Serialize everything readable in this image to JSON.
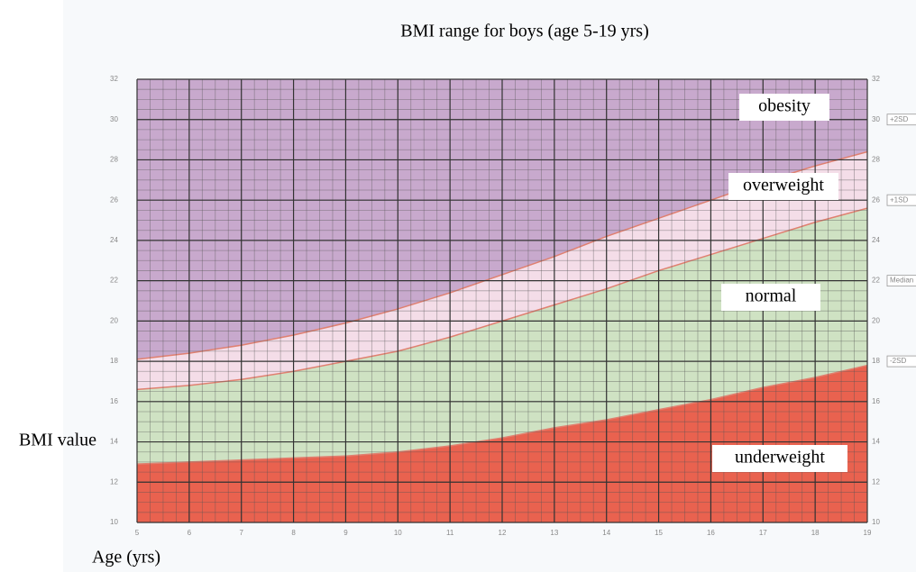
{
  "chart_data": {
    "type": "band",
    "title": "BMI range for boys  (age 5-19 yrs)",
    "y_label": "BMI value",
    "x_label": "Age (yrs)",
    "x": [
      5,
      6,
      7,
      8,
      9,
      10,
      11,
      12,
      13,
      14,
      15,
      16,
      17,
      18,
      19
    ],
    "series": [
      {
        "name": "underweight",
        "color": "#e9624f",
        "values": [
          12.9,
          13.0,
          13.1,
          13.2,
          13.3,
          13.5,
          13.8,
          14.2,
          14.7,
          15.1,
          15.6,
          16.1,
          16.7,
          17.2,
          17.8
        ]
      },
      {
        "name": "normal",
        "color": "#cfe2c3",
        "values": [
          16.6,
          16.8,
          17.1,
          17.5,
          18.0,
          18.5,
          19.2,
          20.0,
          20.8,
          21.6,
          22.5,
          23.3,
          24.1,
          24.9,
          25.6
        ]
      },
      {
        "name": "overweight",
        "color": "#f4dde8",
        "values": [
          18.1,
          18.4,
          18.8,
          19.3,
          19.9,
          20.6,
          21.4,
          22.3,
          23.2,
          24.2,
          25.1,
          26.0,
          26.9,
          27.7,
          28.4
        ]
      }
    ],
    "top_band": {
      "name": "obesity",
      "color": "#c8a9cd"
    },
    "right_labels": [
      {
        "text": "+2SD",
        "y": 30
      },
      {
        "text": "+1SD",
        "y": 26
      },
      {
        "text": "Median",
        "y": 22
      },
      {
        "text": "-2SD",
        "y": 18
      }
    ],
    "xlim": [
      5,
      19
    ],
    "ylim": [
      10,
      32
    ],
    "xticks": [
      5,
      6,
      7,
      8,
      9,
      10,
      11,
      12,
      13,
      14,
      15,
      16,
      17,
      18,
      19
    ],
    "yticks": [
      10,
      12,
      14,
      16,
      18,
      20,
      22,
      24,
      26,
      28,
      30,
      32
    ],
    "grid": true
  }
}
